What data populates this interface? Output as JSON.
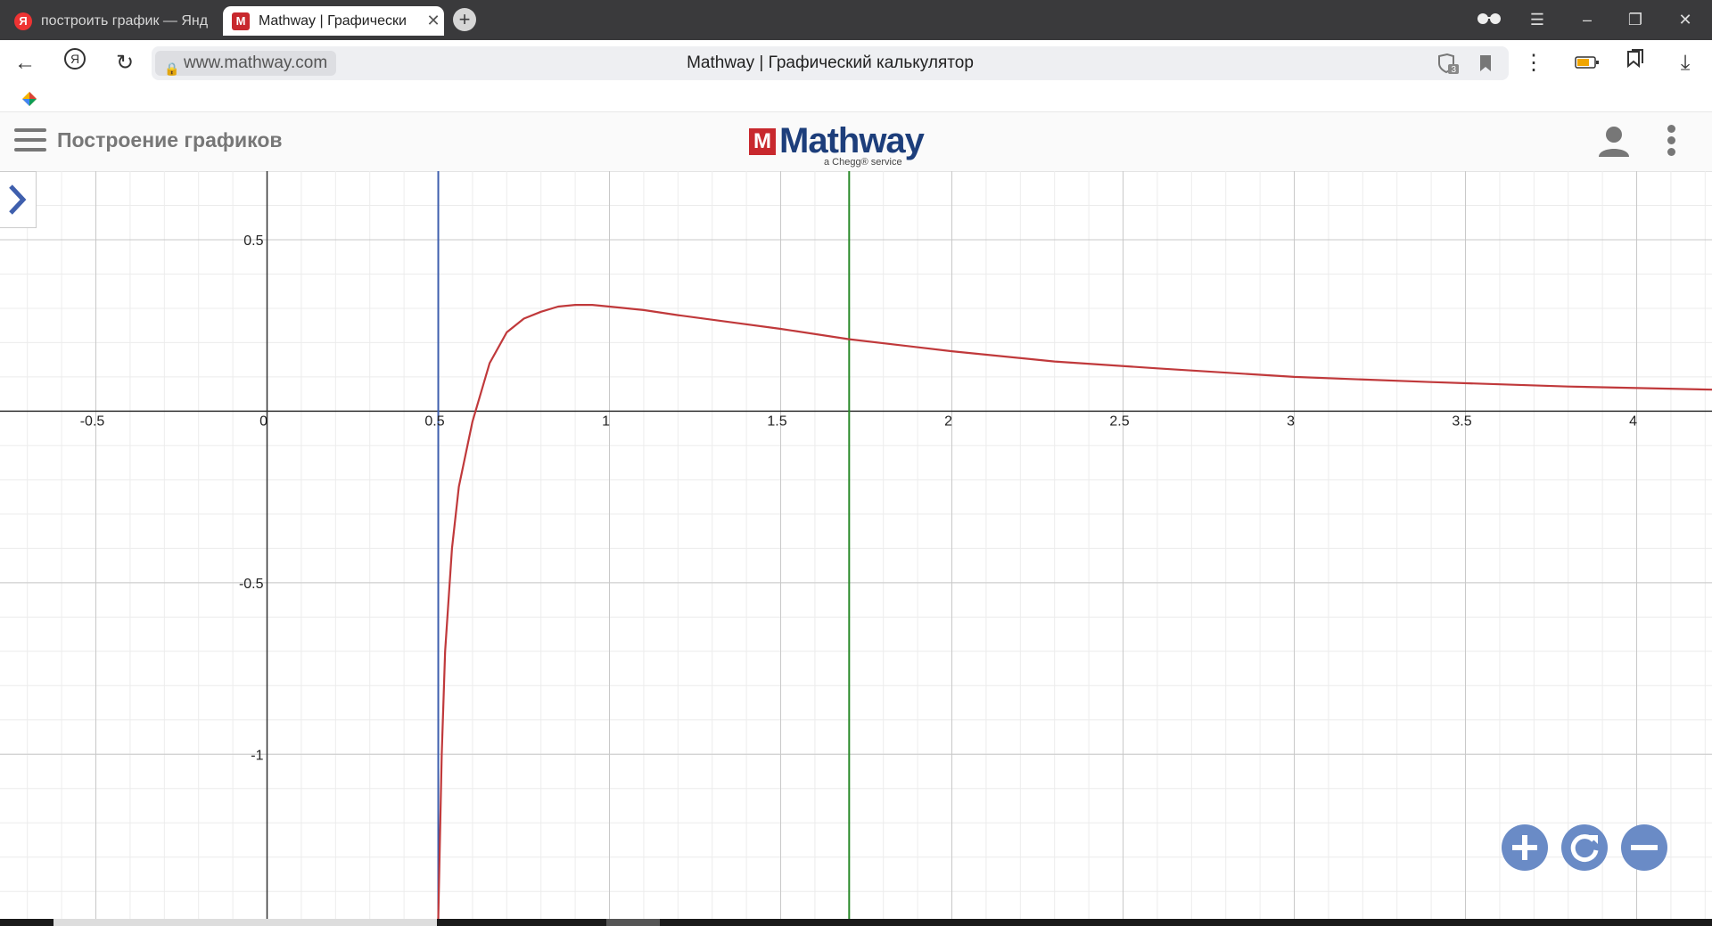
{
  "browser": {
    "tabs": [
      {
        "label": "построить график — Янд",
        "favicon": "Я"
      },
      {
        "label": "Mathway | Графически",
        "favicon": "M"
      }
    ],
    "url": "www.mathway.com",
    "page_title": "Mathway | Графический калькулятор",
    "shield_badge": "3"
  },
  "app": {
    "section_title": "Построение графиков",
    "logo_text": "Mathway",
    "logo_sub": "a Chegg® service",
    "brand_color": "#1d3e7b",
    "logo_red": "#c8282d"
  },
  "chart_data": {
    "type": "line",
    "xlim": [
      -0.78,
      4.22
    ],
    "ylim": [
      -1.48,
      0.7
    ],
    "grid": true,
    "x_ticks": [
      {
        "v": -0.5,
        "label": "-0.5"
      },
      {
        "v": 0,
        "label": "0"
      },
      {
        "v": 0.5,
        "label": "0.5"
      },
      {
        "v": 1,
        "label": "1"
      },
      {
        "v": 1.5,
        "label": "1.5"
      },
      {
        "v": 2,
        "label": "2"
      },
      {
        "v": 2.5,
        "label": "2.5"
      },
      {
        "v": 3,
        "label": "3"
      },
      {
        "v": 3.5,
        "label": "3.5"
      },
      {
        "v": 4,
        "label": "4"
      }
    ],
    "y_ticks": [
      {
        "v": 0.5,
        "label": "0.5"
      },
      {
        "v": -0.5,
        "label": "-0.5"
      },
      {
        "v": -1,
        "label": "-1"
      }
    ],
    "series": [
      {
        "color": "#c0393b",
        "x": [
          0.5,
          0.51,
          0.52,
          0.54,
          0.56,
          0.6,
          0.65,
          0.7,
          0.75,
          0.8,
          0.85,
          0.9,
          0.95,
          1.0,
          1.1,
          1.2,
          1.35,
          1.5,
          1.7,
          2.0,
          2.3,
          2.6,
          3.0,
          3.4,
          3.8,
          4.22
        ],
        "y": [
          -1.48,
          -1.0,
          -0.7,
          -0.4,
          -0.22,
          -0.03,
          0.14,
          0.23,
          0.27,
          0.29,
          0.305,
          0.31,
          0.31,
          0.305,
          0.295,
          0.28,
          0.26,
          0.24,
          0.21,
          0.175,
          0.145,
          0.125,
          0.1,
          0.085,
          0.072,
          0.063
        ]
      }
    ],
    "vertical_lines": [
      {
        "x": 0.5,
        "color": "#3f5fad"
      },
      {
        "x": 1.7,
        "color": "#2a8a2a"
      }
    ]
  },
  "zoom_controls": [
    {
      "name": "zoom-in-button",
      "icon": "plus-icon"
    },
    {
      "name": "reset-view-button",
      "icon": "refresh-icon"
    },
    {
      "name": "zoom-out-button",
      "icon": "minus-icon"
    }
  ]
}
